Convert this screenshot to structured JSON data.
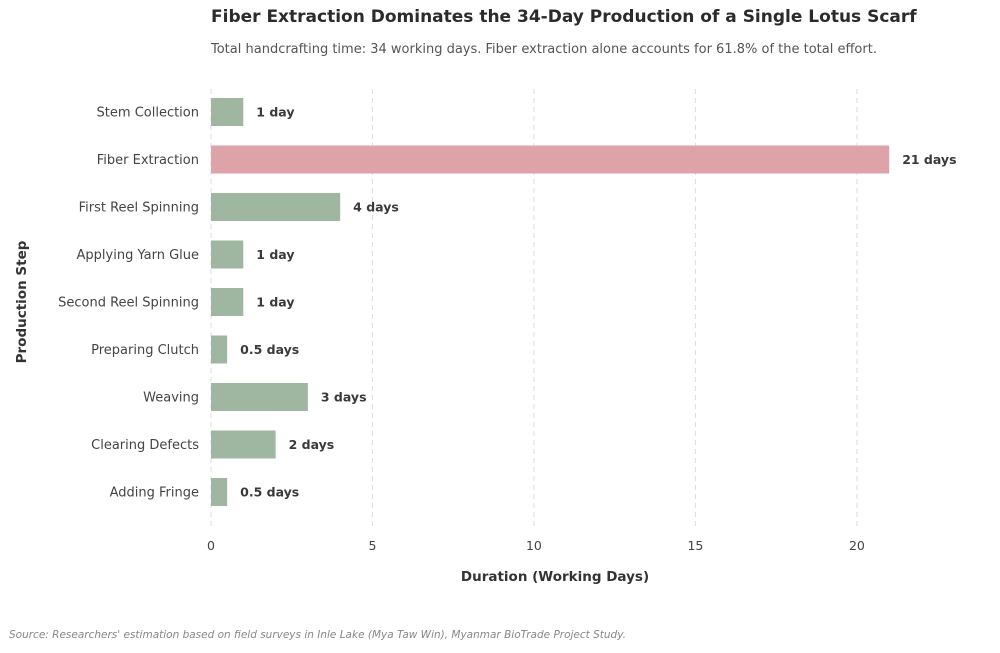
{
  "chart_data": {
    "type": "bar",
    "orientation": "horizontal",
    "title": "Fiber Extraction Dominates the 34-Day Production of a Single Lotus Scarf",
    "subtitle": "Total handcrafting time: 34 working days. Fiber extraction alone accounts for 61.8% of the total effort.",
    "xlabel": "Duration (Working Days)",
    "ylabel": "Production Step",
    "categories": [
      "Stem Collection",
      "Fiber Extraction",
      "First Reel Spinning",
      "Applying Yarn Glue",
      "Second Reel Spinning",
      "Preparing Clutch",
      "Weaving",
      "Clearing Defects",
      "Adding Fringe"
    ],
    "values": [
      1,
      21,
      4,
      1,
      1,
      0.5,
      3,
      2,
      0.5
    ],
    "value_labels": [
      "1 day",
      "21 days",
      "4 days",
      "1 day",
      "1 day",
      "0.5 days",
      "3 days",
      "2 days",
      "0.5 days"
    ],
    "highlight_index": 1,
    "xlim": [
      0,
      24.4
    ],
    "xticks": [
      0,
      5,
      10,
      15,
      20
    ],
    "grid": "vertical-dashed",
    "colors": {
      "bar": "#9fb7a1",
      "highlight": "#dea3a9",
      "grid": "#dddddd"
    },
    "source": "Source: Researchers' estimation based on field surveys in Inle Lake (Mya Taw Win), Myanmar BioTrade Project Study."
  }
}
